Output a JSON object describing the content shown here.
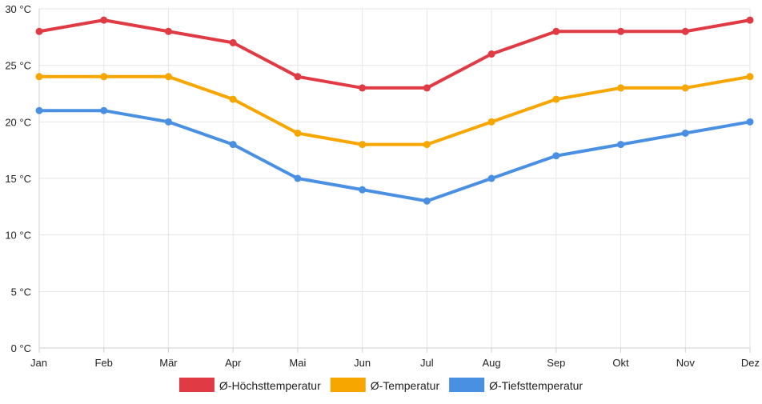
{
  "chart_data": {
    "type": "line",
    "title": "",
    "xlabel": "",
    "ylabel": "",
    "categories": [
      "Jan",
      "Feb",
      "Mär",
      "Apr",
      "Mai",
      "Jun",
      "Jul",
      "Aug",
      "Sep",
      "Okt",
      "Nov",
      "Dez"
    ],
    "ylim": [
      0,
      30
    ],
    "y_ticks": [
      0,
      5,
      10,
      15,
      20,
      25,
      30
    ],
    "y_tick_labels": [
      "0 °C",
      "5 °C",
      "10 °C",
      "15 °C",
      "20 °C",
      "25 °C",
      "30 °C"
    ],
    "grid": true,
    "legend_position": "bottom",
    "series": [
      {
        "name": "Ø-Höchsttemperatur",
        "color": "#e03a45",
        "values": [
          28,
          29,
          28,
          27,
          24,
          23,
          23,
          26,
          28,
          28,
          28,
          29
        ]
      },
      {
        "name": "Ø-Temperatur",
        "color": "#f7a600",
        "values": [
          24,
          24,
          24,
          22,
          19,
          18,
          18,
          20,
          22,
          23,
          23,
          24
        ]
      },
      {
        "name": "Ø-Tiefsttemperatur",
        "color": "#4a90e2",
        "values": [
          21,
          21,
          20,
          18,
          15,
          14,
          13,
          15,
          17,
          18,
          19,
          20
        ]
      }
    ]
  }
}
